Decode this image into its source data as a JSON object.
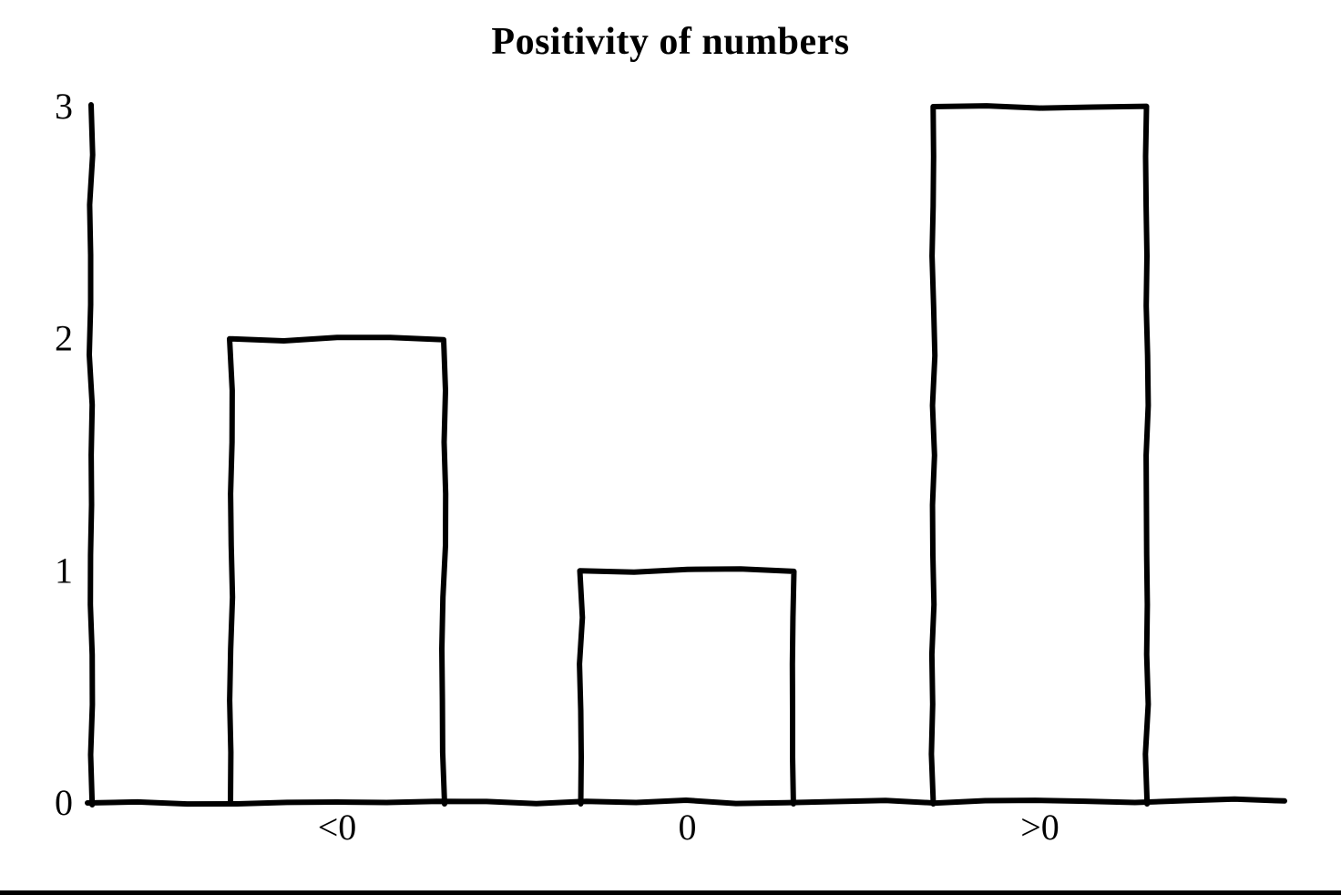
{
  "page": {
    "background": "#ffffff"
  },
  "chart_data": {
    "type": "bar",
    "title": "Positivity of numbers",
    "categories": [
      "<0",
      "0",
      ">0"
    ],
    "values": [
      2,
      1,
      3
    ],
    "xlabel": "",
    "ylabel": "",
    "ylim": [
      0,
      3
    ],
    "yticks": [
      0,
      1,
      2,
      3
    ],
    "grid": false,
    "legend": false,
    "style": {
      "stroke_color": "#000000",
      "bar_fill": "#ffffff",
      "background": "#ffffff",
      "hand_drawn": true
    }
  }
}
